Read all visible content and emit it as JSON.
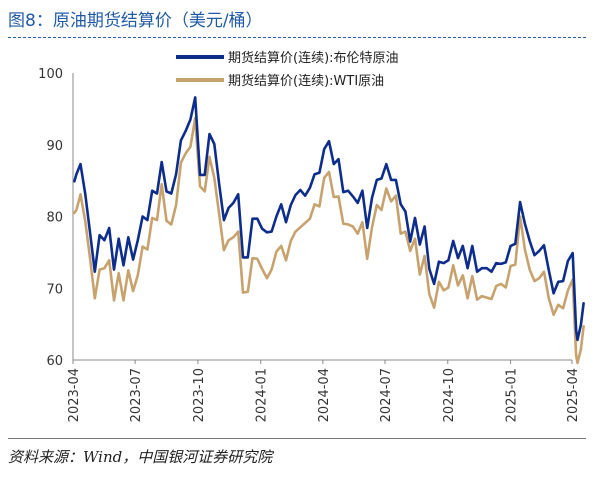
{
  "header": {
    "title": "图8：原油期货结算价（美元/桶）"
  },
  "footer": {
    "source": "资料来源：Wind，中国银河证券研究院"
  },
  "colors": {
    "brent": "#0d2d8c",
    "wti": "#c8a26e",
    "accent": "#1f5aa6"
  },
  "chart_data": {
    "type": "line",
    "x_ticks": [
      "2023-04",
      "2023-07",
      "2023-10",
      "2024-01",
      "2024-04",
      "2024-07",
      "2024-10",
      "2025-01",
      "2025-04"
    ],
    "ylim": [
      60,
      100
    ],
    "y_ticks": [
      60,
      70,
      80,
      90,
      100
    ],
    "legend_position": "top",
    "series": [
      {
        "name": "期货结算价(连续):布伦特原油",
        "color": "#0d2d8c",
        "points": [
          [
            "2023-04-03",
            84.9
          ],
          [
            "2023-04-06",
            85.9
          ],
          [
            "2023-04-12",
            87.3
          ],
          [
            "2023-04-19",
            83.1
          ],
          [
            "2023-04-26",
            77.7
          ],
          [
            "2023-05-03",
            72.3
          ],
          [
            "2023-05-10",
            77.4
          ],
          [
            "2023-05-17",
            76.7
          ],
          [
            "2023-05-24",
            78.4
          ],
          [
            "2023-05-31",
            72.6
          ],
          [
            "2023-06-07",
            76.9
          ],
          [
            "2023-06-14",
            73.2
          ],
          [
            "2023-06-21",
            77.1
          ],
          [
            "2023-06-28",
            74.0
          ],
          [
            "2023-07-05",
            76.7
          ],
          [
            "2023-07-12",
            80.0
          ],
          [
            "2023-07-19",
            79.5
          ],
          [
            "2023-07-26",
            83.6
          ],
          [
            "2023-08-02",
            83.2
          ],
          [
            "2023-08-09",
            87.6
          ],
          [
            "2023-08-16",
            83.5
          ],
          [
            "2023-08-23",
            83.2
          ],
          [
            "2023-08-30",
            85.9
          ],
          [
            "2023-09-06",
            90.6
          ],
          [
            "2023-09-13",
            91.9
          ],
          [
            "2023-09-20",
            93.5
          ],
          [
            "2023-09-27",
            96.6
          ],
          [
            "2023-10-04",
            85.8
          ],
          [
            "2023-10-11",
            85.8
          ],
          [
            "2023-10-18",
            91.5
          ],
          [
            "2023-10-25",
            90.1
          ],
          [
            "2023-11-01",
            84.6
          ],
          [
            "2023-11-08",
            79.5
          ],
          [
            "2023-11-15",
            81.2
          ],
          [
            "2023-11-22",
            81.9
          ],
          [
            "2023-11-29",
            83.1
          ],
          [
            "2023-12-06",
            74.3
          ],
          [
            "2023-12-13",
            74.3
          ],
          [
            "2023-12-20",
            79.7
          ],
          [
            "2023-12-27",
            79.7
          ],
          [
            "2024-01-03",
            78.3
          ],
          [
            "2024-01-10",
            77.8
          ],
          [
            "2024-01-17",
            77.9
          ],
          [
            "2024-01-24",
            80.0
          ],
          [
            "2024-01-31",
            81.7
          ],
          [
            "2024-02-07",
            79.2
          ],
          [
            "2024-02-14",
            81.6
          ],
          [
            "2024-02-21",
            83.0
          ],
          [
            "2024-02-28",
            83.7
          ],
          [
            "2024-03-06",
            82.9
          ],
          [
            "2024-03-13",
            84.0
          ],
          [
            "2024-03-20",
            85.9
          ],
          [
            "2024-03-27",
            86.1
          ],
          [
            "2024-04-03",
            89.4
          ],
          [
            "2024-04-10",
            90.5
          ],
          [
            "2024-04-17",
            87.3
          ],
          [
            "2024-04-24",
            88.0
          ],
          [
            "2024-05-01",
            83.4
          ],
          [
            "2024-05-08",
            83.6
          ],
          [
            "2024-05-15",
            82.8
          ],
          [
            "2024-05-22",
            81.9
          ],
          [
            "2024-05-29",
            83.6
          ],
          [
            "2024-06-05",
            78.4
          ],
          [
            "2024-06-12",
            82.6
          ],
          [
            "2024-06-19",
            85.1
          ],
          [
            "2024-06-26",
            85.3
          ],
          [
            "2024-07-03",
            87.3
          ],
          [
            "2024-07-10",
            85.1
          ],
          [
            "2024-07-17",
            85.1
          ],
          [
            "2024-07-24",
            81.7
          ],
          [
            "2024-07-31",
            80.7
          ],
          [
            "2024-08-07",
            76.5
          ],
          [
            "2024-08-14",
            79.8
          ],
          [
            "2024-08-21",
            76.1
          ],
          [
            "2024-08-28",
            78.6
          ],
          [
            "2024-09-04",
            72.7
          ],
          [
            "2024-09-11",
            70.6
          ],
          [
            "2024-09-18",
            73.7
          ],
          [
            "2024-09-25",
            73.5
          ],
          [
            "2024-10-02",
            73.9
          ],
          [
            "2024-10-09",
            76.6
          ],
          [
            "2024-10-16",
            74.2
          ],
          [
            "2024-10-23",
            75.9
          ],
          [
            "2024-10-30",
            72.8
          ],
          [
            "2024-11-06",
            75.9
          ],
          [
            "2024-11-13",
            72.3
          ],
          [
            "2024-11-20",
            72.8
          ],
          [
            "2024-11-27",
            72.8
          ],
          [
            "2024-12-04",
            72.3
          ],
          [
            "2024-12-11",
            73.5
          ],
          [
            "2024-12-18",
            73.4
          ],
          [
            "2024-12-25",
            73.6
          ],
          [
            "2025-01-01",
            75.9
          ],
          [
            "2025-01-08",
            76.2
          ],
          [
            "2025-01-15",
            82.0
          ],
          [
            "2025-01-22",
            79.0
          ],
          [
            "2025-01-29",
            76.6
          ],
          [
            "2025-02-05",
            74.6
          ],
          [
            "2025-02-12",
            75.2
          ],
          [
            "2025-02-19",
            76.0
          ],
          [
            "2025-02-26",
            72.5
          ],
          [
            "2025-03-05",
            69.3
          ],
          [
            "2025-03-12",
            70.9
          ],
          [
            "2025-03-19",
            71.0
          ],
          [
            "2025-03-26",
            73.8
          ],
          [
            "2025-04-02",
            74.9
          ],
          [
            "2025-04-07",
            64.2
          ],
          [
            "2025-04-09",
            62.8
          ],
          [
            "2025-04-14",
            64.9
          ],
          [
            "2025-04-18",
            67.9
          ]
        ]
      },
      {
        "name": "期货结算价(连续):WTI原油",
        "color": "#c8a26e",
        "points": [
          [
            "2023-04-03",
            80.5
          ],
          [
            "2023-04-06",
            80.9
          ],
          [
            "2023-04-12",
            83.1
          ],
          [
            "2023-04-19",
            79.3
          ],
          [
            "2023-04-26",
            74.1
          ],
          [
            "2023-05-03",
            68.6
          ],
          [
            "2023-05-10",
            72.6
          ],
          [
            "2023-05-17",
            72.8
          ],
          [
            "2023-05-24",
            73.9
          ],
          [
            "2023-05-31",
            68.3
          ],
          [
            "2023-06-07",
            72.1
          ],
          [
            "2023-06-14",
            68.3
          ],
          [
            "2023-06-21",
            72.5
          ],
          [
            "2023-06-28",
            69.6
          ],
          [
            "2023-07-05",
            71.8
          ],
          [
            "2023-07-12",
            75.8
          ],
          [
            "2023-07-19",
            75.4
          ],
          [
            "2023-07-26",
            79.8
          ],
          [
            "2023-08-02",
            79.5
          ],
          [
            "2023-08-09",
            84.5
          ],
          [
            "2023-08-16",
            79.4
          ],
          [
            "2023-08-23",
            78.9
          ],
          [
            "2023-08-30",
            81.6
          ],
          [
            "2023-09-06",
            87.5
          ],
          [
            "2023-09-13",
            88.8
          ],
          [
            "2023-09-20",
            89.7
          ],
          [
            "2023-09-27",
            93.7
          ],
          [
            "2023-10-04",
            84.2
          ],
          [
            "2023-10-11",
            83.5
          ],
          [
            "2023-10-18",
            88.3
          ],
          [
            "2023-10-25",
            85.4
          ],
          [
            "2023-11-01",
            80.4
          ],
          [
            "2023-11-08",
            75.3
          ],
          [
            "2023-11-15",
            76.7
          ],
          [
            "2023-11-22",
            77.1
          ],
          [
            "2023-11-29",
            77.9
          ],
          [
            "2023-12-06",
            69.4
          ],
          [
            "2023-12-13",
            69.5
          ],
          [
            "2023-12-20",
            74.2
          ],
          [
            "2023-12-27",
            74.1
          ],
          [
            "2024-01-03",
            72.7
          ],
          [
            "2024-01-10",
            71.4
          ],
          [
            "2024-01-17",
            72.6
          ],
          [
            "2024-01-24",
            75.1
          ],
          [
            "2024-01-31",
            75.9
          ],
          [
            "2024-02-07",
            73.9
          ],
          [
            "2024-02-14",
            76.6
          ],
          [
            "2024-02-21",
            77.9
          ],
          [
            "2024-02-28",
            78.5
          ],
          [
            "2024-03-06",
            79.1
          ],
          [
            "2024-03-13",
            79.7
          ],
          [
            "2024-03-20",
            81.7
          ],
          [
            "2024-03-27",
            81.4
          ],
          [
            "2024-04-03",
            85.4
          ],
          [
            "2024-04-10",
            86.2
          ],
          [
            "2024-04-17",
            82.7
          ],
          [
            "2024-04-24",
            82.8
          ],
          [
            "2024-05-01",
            79.0
          ],
          [
            "2024-05-08",
            78.9
          ],
          [
            "2024-05-15",
            78.6
          ],
          [
            "2024-05-22",
            77.6
          ],
          [
            "2024-05-29",
            79.2
          ],
          [
            "2024-06-05",
            74.1
          ],
          [
            "2024-06-12",
            78.5
          ],
          [
            "2024-06-19",
            81.6
          ],
          [
            "2024-06-26",
            80.9
          ],
          [
            "2024-07-03",
            83.9
          ],
          [
            "2024-07-10",
            82.1
          ],
          [
            "2024-07-17",
            82.9
          ],
          [
            "2024-07-24",
            77.6
          ],
          [
            "2024-07-31",
            77.9
          ],
          [
            "2024-08-07",
            75.2
          ],
          [
            "2024-08-14",
            76.9
          ],
          [
            "2024-08-21",
            71.9
          ],
          [
            "2024-08-28",
            74.5
          ],
          [
            "2024-09-04",
            69.2
          ],
          [
            "2024-09-11",
            67.3
          ],
          [
            "2024-09-18",
            70.9
          ],
          [
            "2024-09-25",
            69.7
          ],
          [
            "2024-10-02",
            70.1
          ],
          [
            "2024-10-09",
            73.2
          ],
          [
            "2024-10-16",
            70.4
          ],
          [
            "2024-10-23",
            71.8
          ],
          [
            "2024-10-30",
            68.6
          ],
          [
            "2024-11-06",
            71.7
          ],
          [
            "2024-11-13",
            68.4
          ],
          [
            "2024-11-20",
            68.9
          ],
          [
            "2024-11-27",
            68.7
          ],
          [
            "2024-12-04",
            68.5
          ],
          [
            "2024-12-11",
            70.3
          ],
          [
            "2024-12-18",
            70.6
          ],
          [
            "2024-12-25",
            70.1
          ],
          [
            "2025-01-01",
            73.1
          ],
          [
            "2025-01-08",
            73.3
          ],
          [
            "2025-01-15",
            80.0
          ],
          [
            "2025-01-22",
            75.4
          ],
          [
            "2025-01-29",
            72.6
          ],
          [
            "2025-02-05",
            71.0
          ],
          [
            "2025-02-12",
            71.4
          ],
          [
            "2025-02-19",
            72.3
          ],
          [
            "2025-02-26",
            68.6
          ],
          [
            "2025-03-05",
            66.3
          ],
          [
            "2025-03-12",
            67.7
          ],
          [
            "2025-03-19",
            67.2
          ],
          [
            "2025-03-26",
            69.7
          ],
          [
            "2025-04-02",
            71.2
          ],
          [
            "2025-04-07",
            60.7
          ],
          [
            "2025-04-09",
            59.6
          ],
          [
            "2025-04-14",
            61.5
          ],
          [
            "2025-04-18",
            64.7
          ]
        ]
      }
    ]
  }
}
